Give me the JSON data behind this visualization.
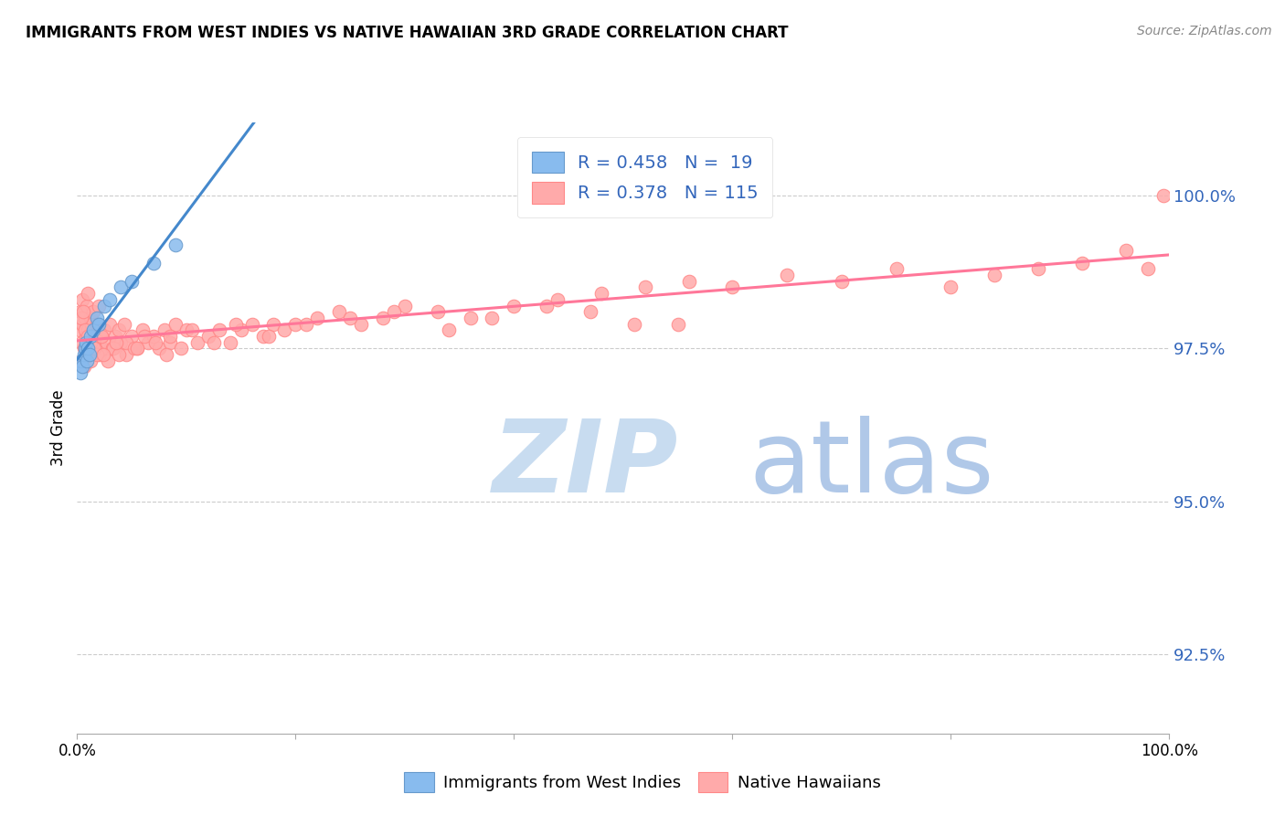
{
  "title": "IMMIGRANTS FROM WEST INDIES VS NATIVE HAWAIIAN 3RD GRADE CORRELATION CHART",
  "source": "Source: ZipAtlas.com",
  "ylabel": "3rd Grade",
  "ytick_values": [
    92.5,
    95.0,
    97.5,
    100.0
  ],
  "xmin": 0.0,
  "xmax": 100.0,
  "ymin": 91.2,
  "ymax": 101.2,
  "legend_blue_r": "0.458",
  "legend_blue_n": "19",
  "legend_pink_r": "0.378",
  "legend_pink_n": "115",
  "legend_label_blue": "Immigrants from West Indies",
  "legend_label_pink": "Native Hawaiians",
  "blue_color": "#88BBEE",
  "pink_color": "#FFAAAA",
  "blue_edge_color": "#6699CC",
  "pink_edge_color": "#FF8888",
  "blue_line_color": "#4488CC",
  "pink_line_color": "#FF7799",
  "watermark_zip": "ZIP",
  "watermark_atlas": "atlas",
  "watermark_color_zip": "#C8DCF0",
  "watermark_color_atlas": "#B0C8E8",
  "blue_x": [
    0.3,
    0.4,
    0.5,
    0.6,
    0.7,
    0.8,
    0.9,
    1.0,
    1.1,
    1.2,
    1.5,
    1.8,
    2.0,
    2.5,
    3.0,
    4.0,
    5.0,
    7.0,
    9.0
  ],
  "blue_y": [
    97.1,
    97.3,
    97.2,
    97.4,
    97.5,
    97.6,
    97.3,
    97.5,
    97.4,
    97.7,
    97.8,
    98.0,
    97.9,
    98.2,
    98.3,
    98.5,
    98.6,
    98.9,
    99.2
  ],
  "pink_x": [
    0.2,
    0.3,
    0.4,
    0.5,
    0.5,
    0.6,
    0.7,
    0.8,
    0.9,
    1.0,
    1.0,
    1.1,
    1.2,
    1.3,
    1.4,
    1.5,
    1.6,
    1.7,
    1.8,
    2.0,
    2.0,
    2.1,
    2.2,
    2.3,
    2.5,
    2.7,
    3.0,
    3.2,
    3.5,
    3.8,
    4.0,
    4.3,
    4.5,
    5.0,
    5.5,
    6.0,
    6.5,
    7.0,
    7.5,
    8.0,
    8.5,
    9.0,
    9.5,
    10.0,
    11.0,
    12.0,
    13.0,
    14.0,
    15.0,
    16.0,
    17.0,
    18.0,
    19.0,
    20.0,
    22.0,
    24.0,
    26.0,
    28.0,
    30.0,
    33.0,
    36.0,
    40.0,
    44.0,
    48.0,
    52.0,
    56.0,
    60.0,
    65.0,
    70.0,
    75.0,
    80.0,
    84.0,
    88.0,
    92.0,
    96.0,
    98.0,
    99.5,
    0.4,
    0.6,
    0.8,
    1.0,
    1.2,
    1.5,
    1.8,
    2.2,
    2.8,
    3.3,
    3.8,
    4.5,
    5.2,
    6.2,
    7.2,
    8.2,
    10.5,
    12.5,
    14.5,
    17.5,
    21.0,
    25.0,
    29.0,
    34.0,
    38.0,
    43.0,
    47.0,
    51.0,
    55.0,
    0.35,
    0.55,
    0.75,
    0.95,
    1.25,
    1.6,
    2.4,
    3.6,
    5.5,
    8.5
  ],
  "pink_y": [
    97.8,
    98.1,
    97.6,
    97.9,
    98.3,
    97.5,
    98.0,
    97.7,
    98.2,
    97.8,
    98.4,
    97.6,
    98.0,
    97.9,
    97.7,
    98.1,
    97.5,
    97.8,
    97.9,
    97.6,
    98.2,
    97.4,
    97.7,
    97.5,
    97.8,
    97.6,
    97.9,
    97.5,
    97.7,
    97.8,
    97.6,
    97.9,
    97.4,
    97.7,
    97.5,
    97.8,
    97.6,
    97.7,
    97.5,
    97.8,
    97.6,
    97.9,
    97.5,
    97.8,
    97.6,
    97.7,
    97.8,
    97.6,
    97.8,
    97.9,
    97.7,
    97.9,
    97.8,
    97.9,
    98.0,
    98.1,
    97.9,
    98.0,
    98.2,
    98.1,
    98.0,
    98.2,
    98.3,
    98.4,
    98.5,
    98.6,
    98.5,
    98.7,
    98.6,
    98.8,
    98.5,
    98.7,
    98.8,
    98.9,
    99.1,
    98.8,
    100.0,
    97.3,
    97.2,
    97.4,
    97.5,
    97.3,
    97.6,
    97.4,
    97.7,
    97.3,
    97.5,
    97.4,
    97.6,
    97.5,
    97.7,
    97.6,
    97.4,
    97.8,
    97.6,
    97.9,
    97.7,
    97.9,
    98.0,
    98.1,
    97.8,
    98.0,
    98.2,
    98.1,
    97.9,
    97.9,
    98.0,
    98.1,
    97.8,
    97.7,
    97.6,
    97.5,
    97.4,
    97.6,
    97.5,
    97.7
  ]
}
